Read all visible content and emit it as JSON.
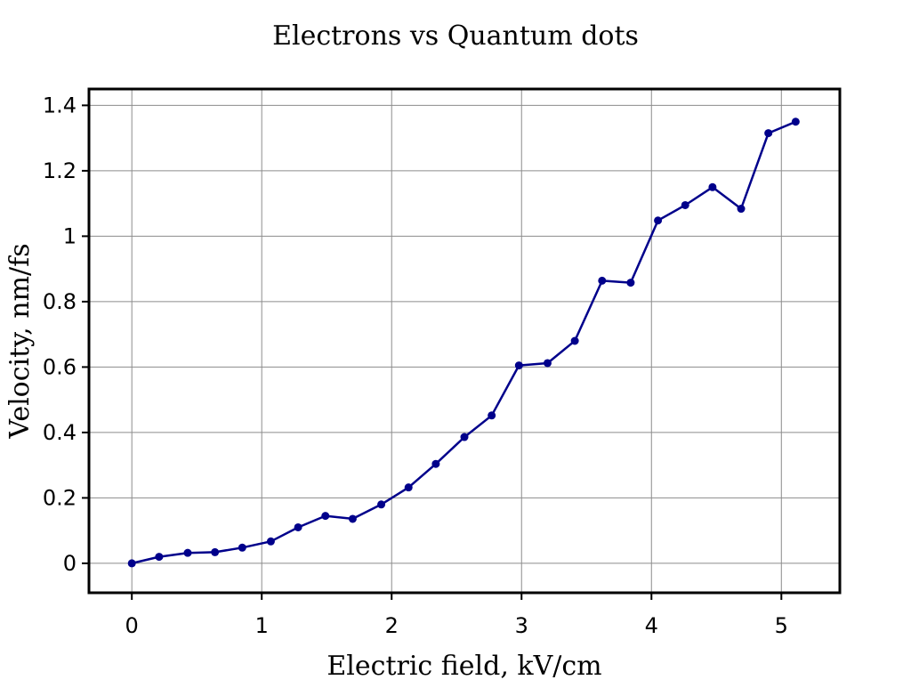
{
  "chart_data": {
    "type": "line",
    "title": "Electrons vs Quantum dots",
    "xlabel": "Electric field, kV/cm",
    "ylabel": "Velocity, nm/fs",
    "xlim": [
      -0.33,
      5.45
    ],
    "ylim": [
      -0.09,
      1.45
    ],
    "x_ticks": [
      0,
      1,
      2,
      3,
      4,
      5
    ],
    "x_tick_labels": [
      "0",
      "1",
      "2",
      "3",
      "4",
      "5"
    ],
    "y_ticks": [
      0,
      0.2,
      0.4,
      0.6,
      0.8,
      1.0,
      1.2,
      1.4
    ],
    "y_tick_labels": [
      "0",
      "0.2",
      "0.4",
      "0.6",
      "0.8",
      "1",
      "1.2",
      "1.4"
    ],
    "grid": true,
    "line_color": "#00008b",
    "series": [
      {
        "x": [
          0,
          0.21,
          0.43,
          0.64,
          0.85,
          1.07,
          1.28,
          1.49,
          1.7,
          1.92,
          2.13,
          2.34,
          2.56,
          2.77,
          2.98,
          3.2,
          3.41,
          3.62,
          3.84,
          4.05,
          4.26,
          4.47,
          4.69,
          4.9,
          5.11
        ],
        "y": [
          0.0,
          0.02,
          0.032,
          0.034,
          0.048,
          0.067,
          0.11,
          0.145,
          0.136,
          0.18,
          0.232,
          0.304,
          0.386,
          0.452,
          0.605,
          0.612,
          0.68,
          0.864,
          0.858,
          1.048,
          1.095,
          1.15,
          1.084,
          1.315,
          1.35
        ]
      }
    ]
  }
}
